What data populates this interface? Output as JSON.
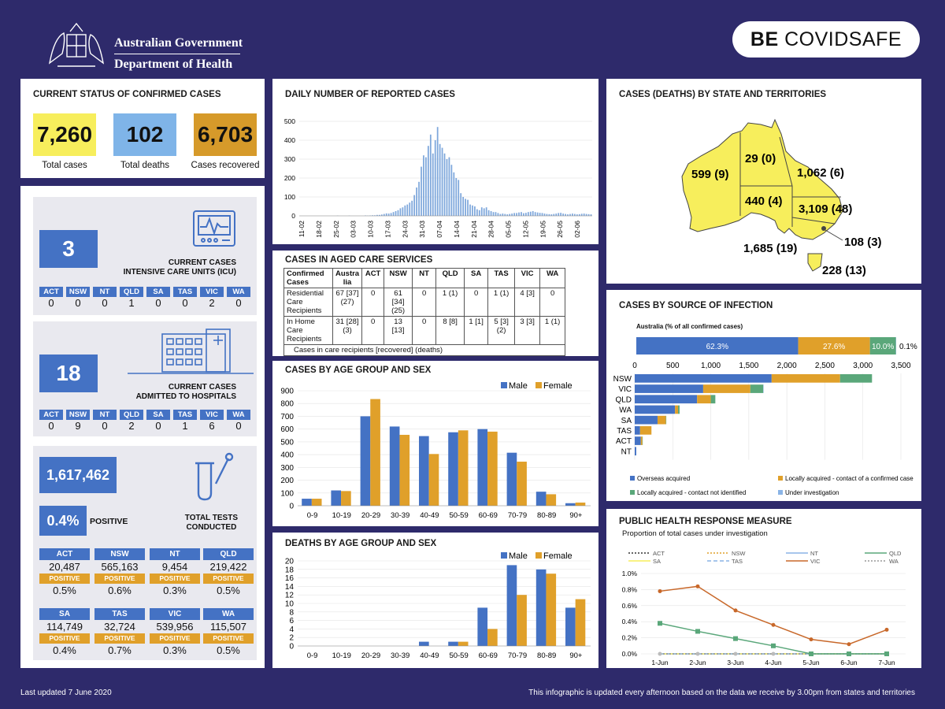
{
  "header": {
    "gov_line1": "Australian Government",
    "gov_line2": "Department of Health",
    "brand_bold": "BE",
    "brand_light": " COVIDSAFE"
  },
  "status": {
    "title": "CURRENT STATUS OF CONFIRMED CASES",
    "total_cases": "7,260",
    "total_cases_label": "Total cases",
    "total_deaths": "102",
    "total_deaths_label": "Total deaths",
    "recovered": "6,703",
    "recovered_label": "Cases recovered"
  },
  "states": [
    "ACT",
    "NSW",
    "NT",
    "QLD",
    "SA",
    "TAS",
    "VIC",
    "WA"
  ],
  "icu": {
    "value": "3",
    "label1": "CURRENT CASES",
    "label2": "INTENSIVE CARE UNITS (ICU)",
    "values": [
      "0",
      "0",
      "0",
      "1",
      "0",
      "0",
      "2",
      "0"
    ]
  },
  "hospital": {
    "value": "18",
    "label1": "CURRENT CASES",
    "label2": "ADMITTED TO HOSPITALS",
    "values": [
      "0",
      "9",
      "0",
      "2",
      "0",
      "1",
      "6",
      "0"
    ]
  },
  "tests": {
    "value": "1,617,462",
    "positive_pct": "0.4%",
    "positive_label": "POSITIVE",
    "label1": "TOTAL TESTS",
    "label2": "CONDUCTED",
    "positive_tag": "POSITIVE",
    "rows": [
      [
        {
          "state": "ACT",
          "count": "20,487",
          "pct": "0.5%"
        },
        {
          "state": "NSW",
          "count": "565,163",
          "pct": "0.6%"
        },
        {
          "state": "NT",
          "count": "9,454",
          "pct": "0.3%"
        },
        {
          "state": "QLD",
          "count": "219,422",
          "pct": "0.5%"
        }
      ],
      [
        {
          "state": "SA",
          "count": "114,749",
          "pct": "0.4%"
        },
        {
          "state": "TAS",
          "count": "32,724",
          "pct": "0.7%"
        },
        {
          "state": "VIC",
          "count": "539,956",
          "pct": "0.3%"
        },
        {
          "state": "WA",
          "count": "115,507",
          "pct": "0.5%"
        }
      ]
    ]
  },
  "daily": {
    "title": "DAILY NUMBER OF REPORTED CASES"
  },
  "aged": {
    "title": "CASES IN AGED CARE SERVICES",
    "header": [
      "Confirmed Cases",
      "Austra lia",
      "ACT",
      "NSW",
      "NT",
      "QLD",
      "SA",
      "TAS",
      "VIC",
      "WA"
    ],
    "rows": [
      [
        "Residential Care Recipients",
        "67 [37] (27)",
        "0",
        "61 [34] (25)",
        "0",
        "1 (1)",
        "0",
        "1 (1)",
        "4 [3]",
        "0"
      ],
      [
        "In Home Care Recipients",
        "31 [28] (3)",
        "0",
        "13 [13]",
        "0",
        "8 [8]",
        "1 [1]",
        "5 [3] (2)",
        "3 [3]",
        "1 (1)"
      ]
    ],
    "note": "Cases in care recipients [recovered] (deaths)"
  },
  "age_cases": {
    "title": "CASES BY AGE GROUP AND SEX"
  },
  "age_deaths": {
    "title": "DEATHS BY AGE GROUP AND SEX"
  },
  "map": {
    "title": "CASES (DEATHS) BY STATE AND TERRITORIES",
    "wa": "599 (9)",
    "nt": "29 (0)",
    "qld": "1,062 (6)",
    "sa": "440 (4)",
    "nsw": "3,109 (48)",
    "act": "108 (3)",
    "vic": "1,685 (19)",
    "tas": "228 (13)"
  },
  "source": {
    "title": "CASES BY SOURCE OF INFECTION",
    "subtitle": "Australia (% of all confirmed cases)",
    "pct1": "62.3%",
    "pct2": "27.6%",
    "pct3": "10.0%",
    "pct4": "0.1%"
  },
  "phr": {
    "title": "PUBLIC HEALTH RESPONSE MEASURE",
    "subtitle": "Proportion of total cases under investigation"
  },
  "footer": {
    "updated": "Last updated 7 June 2020",
    "note": "This infographic is updated every afternoon based on the data we receive by 3.00pm from states and territories"
  },
  "colors": {
    "blue": "#4472c4",
    "orange": "#e0a02a",
    "green": "#5aa77a",
    "lightblue": "#8ab4e6",
    "yellow": "#f7ee5c",
    "skyblue": "#7fb4e8",
    "gold": "#d69a2a",
    "navy": "#2e2a6b"
  },
  "chart_data": [
    {
      "type": "bar",
      "id": "daily",
      "title": "DAILY NUMBER OF REPORTED CASES",
      "ylim": [
        0,
        500
      ],
      "yticks": [
        0,
        100,
        200,
        300,
        400,
        500
      ],
      "tick_labels": [
        "11-02",
        "18-02",
        "25-02",
        "03-03",
        "10-03",
        "17-03",
        "24-03",
        "31-03",
        "07-04",
        "14-04",
        "21-04",
        "28-04",
        "05-05",
        "12-05",
        "19-05",
        "26-05",
        "02-06"
      ],
      "values": [
        0,
        0,
        0,
        0,
        0,
        0,
        0,
        0,
        0,
        0,
        0,
        0,
        0,
        0,
        0,
        0,
        1,
        0,
        0,
        0,
        0,
        1,
        0,
        0,
        0,
        0,
        0,
        0,
        2,
        1,
        2,
        3,
        3,
        5,
        5,
        7,
        10,
        13,
        12,
        15,
        20,
        25,
        30,
        40,
        45,
        55,
        60,
        70,
        80,
        110,
        150,
        180,
        260,
        320,
        310,
        370,
        430,
        330,
        400,
        470,
        380,
        360,
        330,
        300,
        310,
        270,
        230,
        200,
        190,
        120,
        100,
        90,
        85,
        60,
        55,
        50,
        35,
        30,
        45,
        40,
        45,
        30,
        25,
        20,
        20,
        15,
        10,
        12,
        10,
        8,
        10,
        12,
        15,
        15,
        18,
        20,
        14,
        16,
        20,
        22,
        25,
        20,
        18,
        16,
        15,
        12,
        10,
        9,
        8,
        10,
        12,
        15,
        16,
        12,
        10,
        8,
        10,
        12,
        10,
        8,
        9,
        11,
        12,
        10,
        9,
        8
      ]
    },
    {
      "type": "bar",
      "id": "age_cases",
      "title": "CASES BY AGE GROUP AND SEX",
      "categories": [
        "0-9",
        "10-19",
        "20-29",
        "30-39",
        "40-49",
        "50-59",
        "60-69",
        "70-79",
        "80-89",
        "90+"
      ],
      "ylim": [
        0,
        900
      ],
      "series": [
        {
          "name": "Male",
          "values": [
            55,
            120,
            700,
            620,
            545,
            575,
            600,
            415,
            110,
            20
          ]
        },
        {
          "name": "Female",
          "values": [
            55,
            115,
            835,
            555,
            405,
            590,
            580,
            345,
            90,
            25
          ]
        }
      ]
    },
    {
      "type": "bar",
      "id": "age_deaths",
      "title": "DEATHS BY AGE GROUP AND SEX",
      "categories": [
        "0-9",
        "10-19",
        "20-29",
        "30-39",
        "40-49",
        "50-59",
        "60-69",
        "70-79",
        "80-89",
        "90+"
      ],
      "ylim": [
        0,
        20
      ],
      "series": [
        {
          "name": "Male",
          "values": [
            0,
            0,
            0,
            0,
            1,
            1,
            9,
            19,
            18,
            9
          ]
        },
        {
          "name": "Female",
          "values": [
            0,
            0,
            0,
            0,
            0,
            1,
            4,
            12,
            17,
            11
          ]
        }
      ]
    },
    {
      "type": "bar",
      "id": "source",
      "title": "CASES BY SOURCE OF INFECTION",
      "categories": [
        "NSW",
        "VIC",
        "QLD",
        "WA",
        "SA",
        "TAS",
        "ACT",
        "NT"
      ],
      "xlim": [
        0,
        3500
      ],
      "xticks": [
        "0",
        "500",
        "1,000",
        "1,500",
        "2,000",
        "2,500",
        "3,000",
        "3,500"
      ],
      "series": [
        {
          "name": "Overseas acquired",
          "values": [
            1800,
            900,
            820,
            530,
            300,
            70,
            80,
            20
          ]
        },
        {
          "name": "Locally acquired - contact of a confirmed case",
          "values": [
            900,
            620,
            180,
            40,
            110,
            150,
            20,
            0
          ]
        },
        {
          "name": "Locally acquired - contact not identified",
          "values": [
            420,
            170,
            60,
            20,
            5,
            0,
            5,
            0
          ]
        },
        {
          "name": "Under investigation",
          "values": [
            0,
            5,
            0,
            0,
            0,
            0,
            0,
            0
          ]
        }
      ]
    },
    {
      "type": "line",
      "id": "phr",
      "title": "PUBLIC HEALTH RESPONSE MEASURE",
      "x": [
        "1-Jun",
        "2-Jun",
        "3-Jun",
        "4-Jun",
        "5-Jun",
        "6-Jun",
        "7-Jun"
      ],
      "ylim": [
        0,
        1.0
      ],
      "yticks": [
        "0.0%",
        "0.2%",
        "0.4%",
        "0.6%",
        "0.8%",
        "1.0%"
      ],
      "series": [
        {
          "name": "ACT",
          "values": [
            0,
            0,
            0,
            0,
            0,
            0,
            0
          ]
        },
        {
          "name": "NSW",
          "values": [
            0,
            0,
            0,
            0,
            0,
            0,
            0
          ]
        },
        {
          "name": "NT",
          "values": [
            0,
            0,
            0,
            0,
            0,
            0,
            0
          ]
        },
        {
          "name": "QLD",
          "values": [
            0.38,
            0.28,
            0.19,
            0.1,
            0,
            0,
            0
          ]
        },
        {
          "name": "SA",
          "values": [
            0,
            0,
            0,
            0,
            0,
            0,
            0
          ]
        },
        {
          "name": "TAS",
          "values": [
            0,
            0,
            0,
            0,
            0,
            0,
            0
          ]
        },
        {
          "name": "VIC",
          "values": [
            0.78,
            0.84,
            0.54,
            0.36,
            0.18,
            0.12,
            0.3
          ]
        },
        {
          "name": "WA",
          "values": [
            0,
            0,
            0,
            0,
            0,
            0,
            0
          ]
        }
      ]
    }
  ]
}
